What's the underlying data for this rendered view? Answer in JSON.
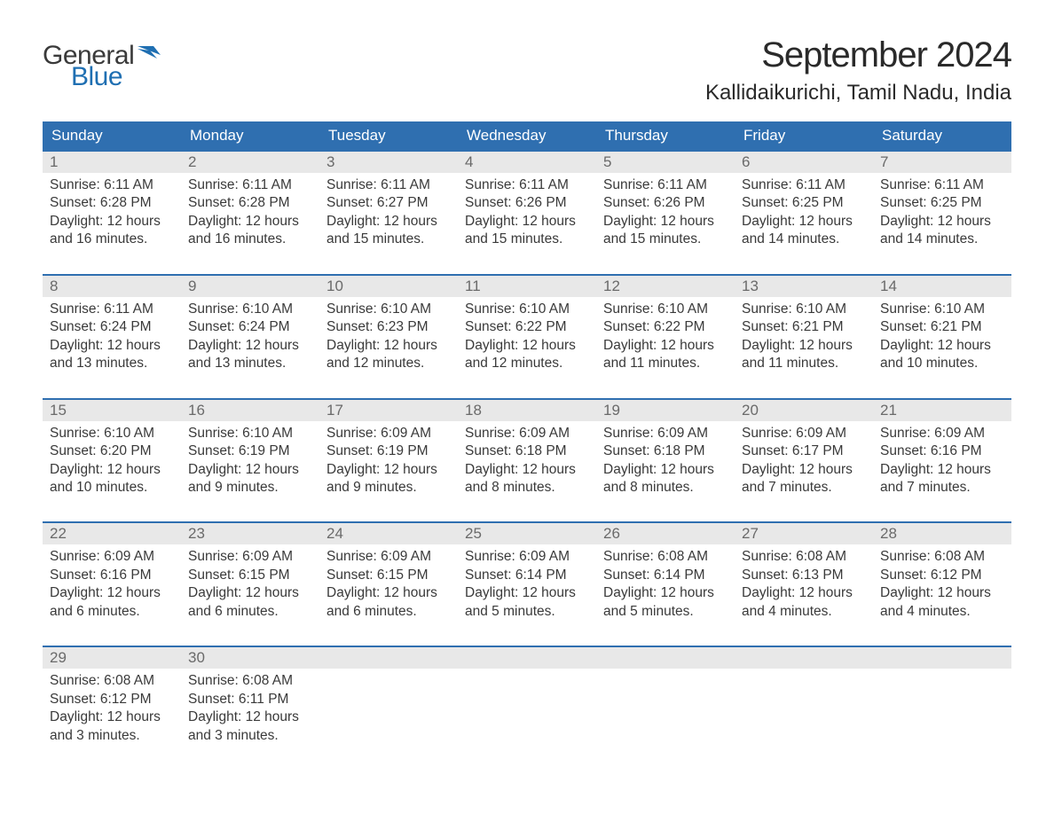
{
  "logo": {
    "word1": "General",
    "word2": "Blue",
    "word1_color": "#3a3a3a",
    "word2_color": "#1f6fb2",
    "icon_color": "#1f6fb2"
  },
  "title": "September 2024",
  "location": "Kallidaikurichi, Tamil Nadu, India",
  "colors": {
    "header_bg": "#2f6fb0",
    "header_text": "#ffffff",
    "daynum_bg": "#e8e8e8",
    "daynum_text": "#6a6a6a",
    "body_text": "#3a3a3a",
    "row_border": "#2f6fb0",
    "page_bg": "#ffffff"
  },
  "typography": {
    "title_fontsize": 40,
    "location_fontsize": 24,
    "header_fontsize": 17,
    "daynum_fontsize": 17,
    "body_fontsize": 15.5,
    "font_family": "Arial"
  },
  "day_headers": [
    "Sunday",
    "Monday",
    "Tuesday",
    "Wednesday",
    "Thursday",
    "Friday",
    "Saturday"
  ],
  "weeks": [
    [
      {
        "num": "1",
        "sunrise": "Sunrise: 6:11 AM",
        "sunset": "Sunset: 6:28 PM",
        "daylight1": "Daylight: 12 hours",
        "daylight2": "and 16 minutes."
      },
      {
        "num": "2",
        "sunrise": "Sunrise: 6:11 AM",
        "sunset": "Sunset: 6:28 PM",
        "daylight1": "Daylight: 12 hours",
        "daylight2": "and 16 minutes."
      },
      {
        "num": "3",
        "sunrise": "Sunrise: 6:11 AM",
        "sunset": "Sunset: 6:27 PM",
        "daylight1": "Daylight: 12 hours",
        "daylight2": "and 15 minutes."
      },
      {
        "num": "4",
        "sunrise": "Sunrise: 6:11 AM",
        "sunset": "Sunset: 6:26 PM",
        "daylight1": "Daylight: 12 hours",
        "daylight2": "and 15 minutes."
      },
      {
        "num": "5",
        "sunrise": "Sunrise: 6:11 AM",
        "sunset": "Sunset: 6:26 PM",
        "daylight1": "Daylight: 12 hours",
        "daylight2": "and 15 minutes."
      },
      {
        "num": "6",
        "sunrise": "Sunrise: 6:11 AM",
        "sunset": "Sunset: 6:25 PM",
        "daylight1": "Daylight: 12 hours",
        "daylight2": "and 14 minutes."
      },
      {
        "num": "7",
        "sunrise": "Sunrise: 6:11 AM",
        "sunset": "Sunset: 6:25 PM",
        "daylight1": "Daylight: 12 hours",
        "daylight2": "and 14 minutes."
      }
    ],
    [
      {
        "num": "8",
        "sunrise": "Sunrise: 6:11 AM",
        "sunset": "Sunset: 6:24 PM",
        "daylight1": "Daylight: 12 hours",
        "daylight2": "and 13 minutes."
      },
      {
        "num": "9",
        "sunrise": "Sunrise: 6:10 AM",
        "sunset": "Sunset: 6:24 PM",
        "daylight1": "Daylight: 12 hours",
        "daylight2": "and 13 minutes."
      },
      {
        "num": "10",
        "sunrise": "Sunrise: 6:10 AM",
        "sunset": "Sunset: 6:23 PM",
        "daylight1": "Daylight: 12 hours",
        "daylight2": "and 12 minutes."
      },
      {
        "num": "11",
        "sunrise": "Sunrise: 6:10 AM",
        "sunset": "Sunset: 6:22 PM",
        "daylight1": "Daylight: 12 hours",
        "daylight2": "and 12 minutes."
      },
      {
        "num": "12",
        "sunrise": "Sunrise: 6:10 AM",
        "sunset": "Sunset: 6:22 PM",
        "daylight1": "Daylight: 12 hours",
        "daylight2": "and 11 minutes."
      },
      {
        "num": "13",
        "sunrise": "Sunrise: 6:10 AM",
        "sunset": "Sunset: 6:21 PM",
        "daylight1": "Daylight: 12 hours",
        "daylight2": "and 11 minutes."
      },
      {
        "num": "14",
        "sunrise": "Sunrise: 6:10 AM",
        "sunset": "Sunset: 6:21 PM",
        "daylight1": "Daylight: 12 hours",
        "daylight2": "and 10 minutes."
      }
    ],
    [
      {
        "num": "15",
        "sunrise": "Sunrise: 6:10 AM",
        "sunset": "Sunset: 6:20 PM",
        "daylight1": "Daylight: 12 hours",
        "daylight2": "and 10 minutes."
      },
      {
        "num": "16",
        "sunrise": "Sunrise: 6:10 AM",
        "sunset": "Sunset: 6:19 PM",
        "daylight1": "Daylight: 12 hours",
        "daylight2": "and 9 minutes."
      },
      {
        "num": "17",
        "sunrise": "Sunrise: 6:09 AM",
        "sunset": "Sunset: 6:19 PM",
        "daylight1": "Daylight: 12 hours",
        "daylight2": "and 9 minutes."
      },
      {
        "num": "18",
        "sunrise": "Sunrise: 6:09 AM",
        "sunset": "Sunset: 6:18 PM",
        "daylight1": "Daylight: 12 hours",
        "daylight2": "and 8 minutes."
      },
      {
        "num": "19",
        "sunrise": "Sunrise: 6:09 AM",
        "sunset": "Sunset: 6:18 PM",
        "daylight1": "Daylight: 12 hours",
        "daylight2": "and 8 minutes."
      },
      {
        "num": "20",
        "sunrise": "Sunrise: 6:09 AM",
        "sunset": "Sunset: 6:17 PM",
        "daylight1": "Daylight: 12 hours",
        "daylight2": "and 7 minutes."
      },
      {
        "num": "21",
        "sunrise": "Sunrise: 6:09 AM",
        "sunset": "Sunset: 6:16 PM",
        "daylight1": "Daylight: 12 hours",
        "daylight2": "and 7 minutes."
      }
    ],
    [
      {
        "num": "22",
        "sunrise": "Sunrise: 6:09 AM",
        "sunset": "Sunset: 6:16 PM",
        "daylight1": "Daylight: 12 hours",
        "daylight2": "and 6 minutes."
      },
      {
        "num": "23",
        "sunrise": "Sunrise: 6:09 AM",
        "sunset": "Sunset: 6:15 PM",
        "daylight1": "Daylight: 12 hours",
        "daylight2": "and 6 minutes."
      },
      {
        "num": "24",
        "sunrise": "Sunrise: 6:09 AM",
        "sunset": "Sunset: 6:15 PM",
        "daylight1": "Daylight: 12 hours",
        "daylight2": "and 6 minutes."
      },
      {
        "num": "25",
        "sunrise": "Sunrise: 6:09 AM",
        "sunset": "Sunset: 6:14 PM",
        "daylight1": "Daylight: 12 hours",
        "daylight2": "and 5 minutes."
      },
      {
        "num": "26",
        "sunrise": "Sunrise: 6:08 AM",
        "sunset": "Sunset: 6:14 PM",
        "daylight1": "Daylight: 12 hours",
        "daylight2": "and 5 minutes."
      },
      {
        "num": "27",
        "sunrise": "Sunrise: 6:08 AM",
        "sunset": "Sunset: 6:13 PM",
        "daylight1": "Daylight: 12 hours",
        "daylight2": "and 4 minutes."
      },
      {
        "num": "28",
        "sunrise": "Sunrise: 6:08 AM",
        "sunset": "Sunset: 6:12 PM",
        "daylight1": "Daylight: 12 hours",
        "daylight2": "and 4 minutes."
      }
    ],
    [
      {
        "num": "29",
        "sunrise": "Sunrise: 6:08 AM",
        "sunset": "Sunset: 6:12 PM",
        "daylight1": "Daylight: 12 hours",
        "daylight2": "and 3 minutes."
      },
      {
        "num": "30",
        "sunrise": "Sunrise: 6:08 AM",
        "sunset": "Sunset: 6:11 PM",
        "daylight1": "Daylight: 12 hours",
        "daylight2": "and 3 minutes."
      },
      {
        "empty": true
      },
      {
        "empty": true
      },
      {
        "empty": true
      },
      {
        "empty": true
      },
      {
        "empty": true
      }
    ]
  ]
}
